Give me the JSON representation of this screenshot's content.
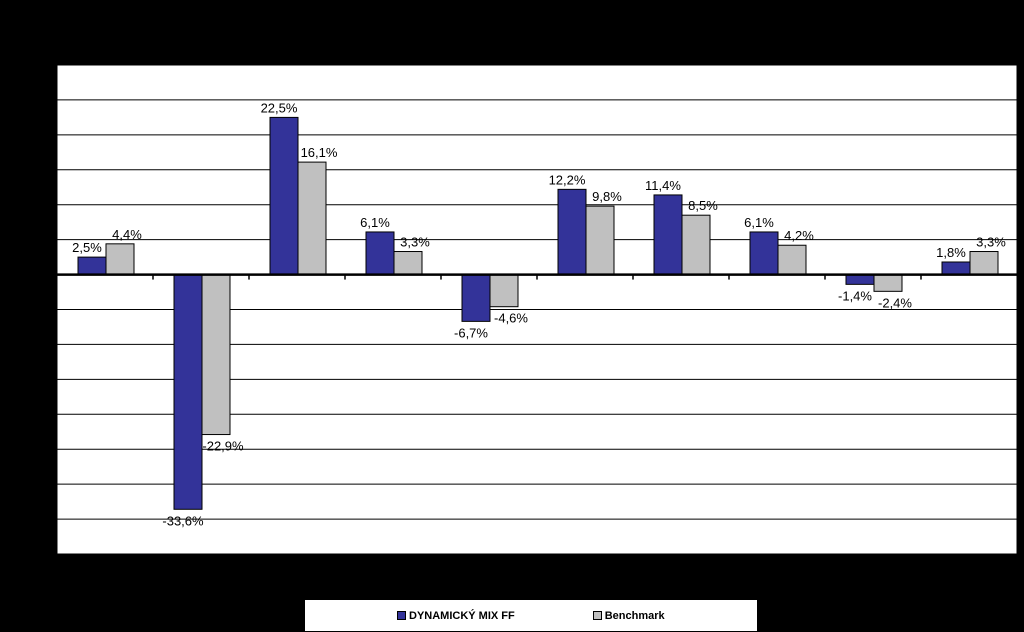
{
  "chart_data": {
    "type": "bar",
    "categories": [
      "",
      "",
      "",
      "",
      "",
      "",
      "",
      "",
      "",
      ""
    ],
    "series": [
      {
        "name": "DYNAMICKÝ MIX FF",
        "color": "#333399",
        "values": [
          2.5,
          -33.6,
          22.5,
          6.1,
          -6.7,
          12.2,
          11.4,
          6.1,
          -1.4,
          1.8
        ],
        "labels": [
          "2,5%",
          "-33,6%",
          "22,5%",
          "6,1%",
          "-6,7%",
          "12,2%",
          "11,4%",
          "6,1%",
          "-1,4%",
          "1,8%"
        ]
      },
      {
        "name": "Benchmark",
        "color": "#c0c0c0",
        "values": [
          4.4,
          -22.9,
          16.1,
          3.3,
          -4.6,
          9.8,
          8.5,
          4.2,
          -2.4,
          3.3
        ],
        "labels": [
          "4,4%",
          "-22,9%",
          "16,1%",
          "3,3%",
          "-4,6%",
          "9,8%",
          "8,5%",
          "4,2%",
          "-2,4%",
          "3,3%"
        ]
      }
    ],
    "ylim": [
      -40,
      30
    ],
    "grid_step": 5,
    "grid": true,
    "legend_position": "bottom",
    "title": "",
    "xlabel": "",
    "ylabel": ""
  }
}
